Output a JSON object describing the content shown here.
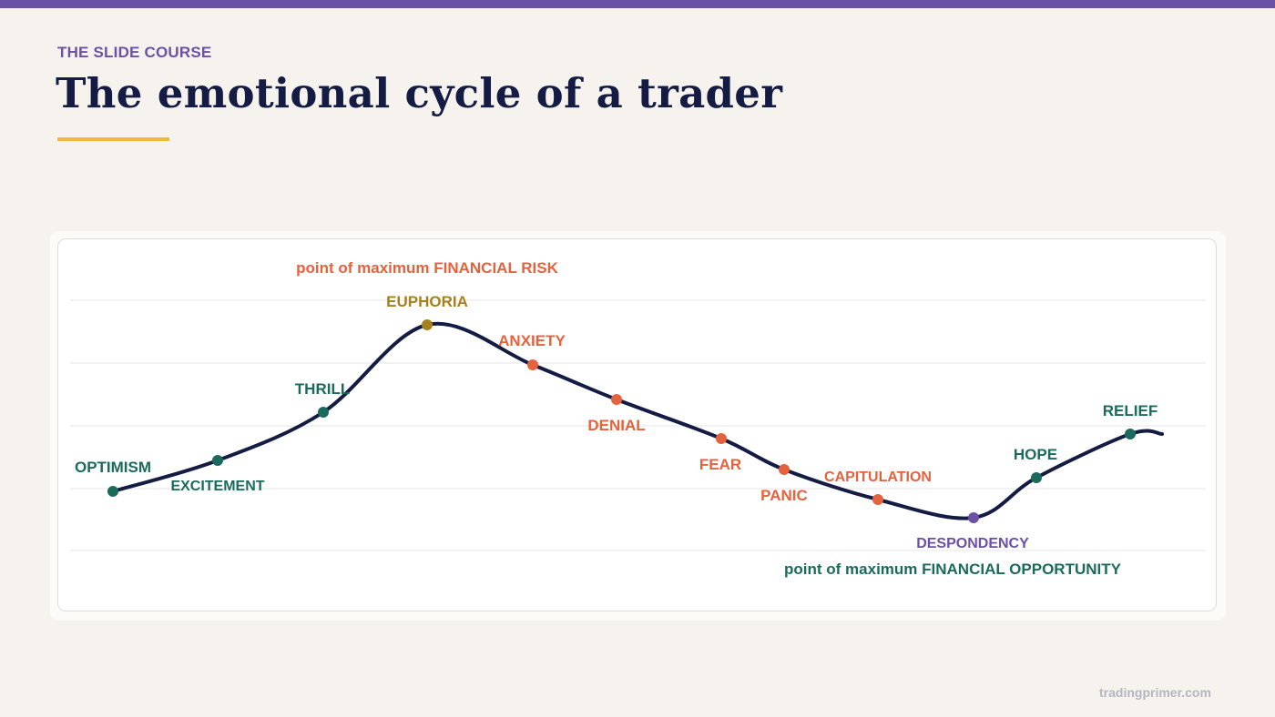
{
  "header": {
    "kicker": "THE SLIDE COURSE",
    "title": "The emotional cycle of a trader"
  },
  "diagram": {
    "top_annotation": "point of maximum FINANCIAL RISK",
    "bottom_annotation": "point of maximum FINANCIAL OPPORTUNITY",
    "stages": [
      {
        "label": "OPTIMISM",
        "tone": "positive"
      },
      {
        "label": "EXCITEMENT",
        "tone": "positive"
      },
      {
        "label": "THRILL",
        "tone": "positive"
      },
      {
        "label": "EUPHORIA",
        "tone": "peak"
      },
      {
        "label": "ANXIETY",
        "tone": "negative"
      },
      {
        "label": "DENIAL",
        "tone": "negative"
      },
      {
        "label": "FEAR",
        "tone": "negative"
      },
      {
        "label": "PANIC",
        "tone": "negative"
      },
      {
        "label": "CAPITULATION",
        "tone": "negative"
      },
      {
        "label": "DESPONDENCY",
        "tone": "bottom"
      },
      {
        "label": "HOPE",
        "tone": "positive"
      },
      {
        "label": "RELIEF",
        "tone": "positive"
      }
    ]
  },
  "colors": {
    "accent_purple": "#6a51a6",
    "title_navy": "#141c44",
    "underline_gold": "#f1b83a",
    "positive_green": "#1a6b5c",
    "negative_orange": "#e5623e",
    "peak_gold": "#a6801c",
    "curve": "#141c44"
  },
  "footer": {
    "brand": "tradingprimer.com"
  }
}
